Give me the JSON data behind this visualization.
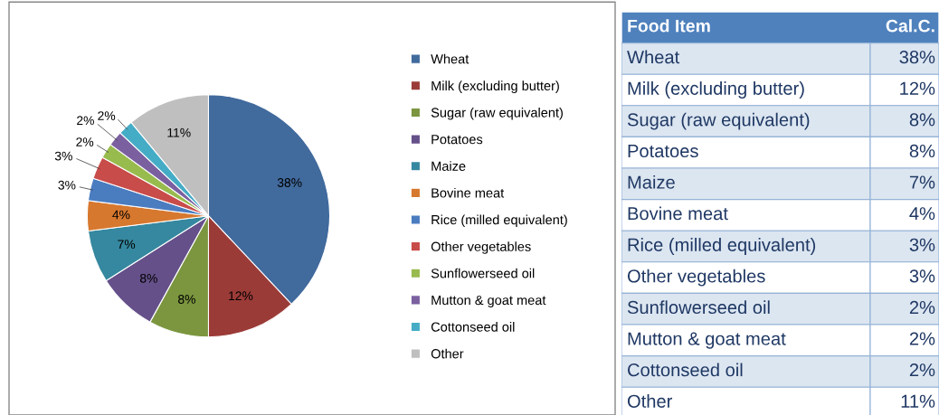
{
  "chart_data": {
    "type": "pie",
    "categories": [
      "Wheat",
      "Milk (excluding butter)",
      "Sugar (raw equivalent)",
      "Potatoes",
      "Maize",
      "Bovine meat",
      "Rice (milled equivalent)",
      "Other vegetables",
      "Sunflowerseed oil",
      "Mutton & goat meat",
      "Cottonseed oil",
      "Other"
    ],
    "values": [
      38,
      12,
      8,
      8,
      7,
      4,
      3,
      3,
      2,
      2,
      2,
      11
    ],
    "value_labels": [
      "38%",
      "12%",
      "8%",
      "8%",
      "7%",
      "4%",
      "3%",
      "3%",
      "2%",
      "2%",
      "2%",
      "11%"
    ],
    "colors": [
      "#416a9d",
      "#9b3b38",
      "#7b963f",
      "#65508a",
      "#35889f",
      "#d7782f",
      "#4a7cc0",
      "#c84c4a",
      "#98bb4d",
      "#7b60a0",
      "#45acc6",
      "#bfbfbf"
    ],
    "legend": "right",
    "annotations": [
      "Food Item",
      "Cal.C."
    ]
  }
}
